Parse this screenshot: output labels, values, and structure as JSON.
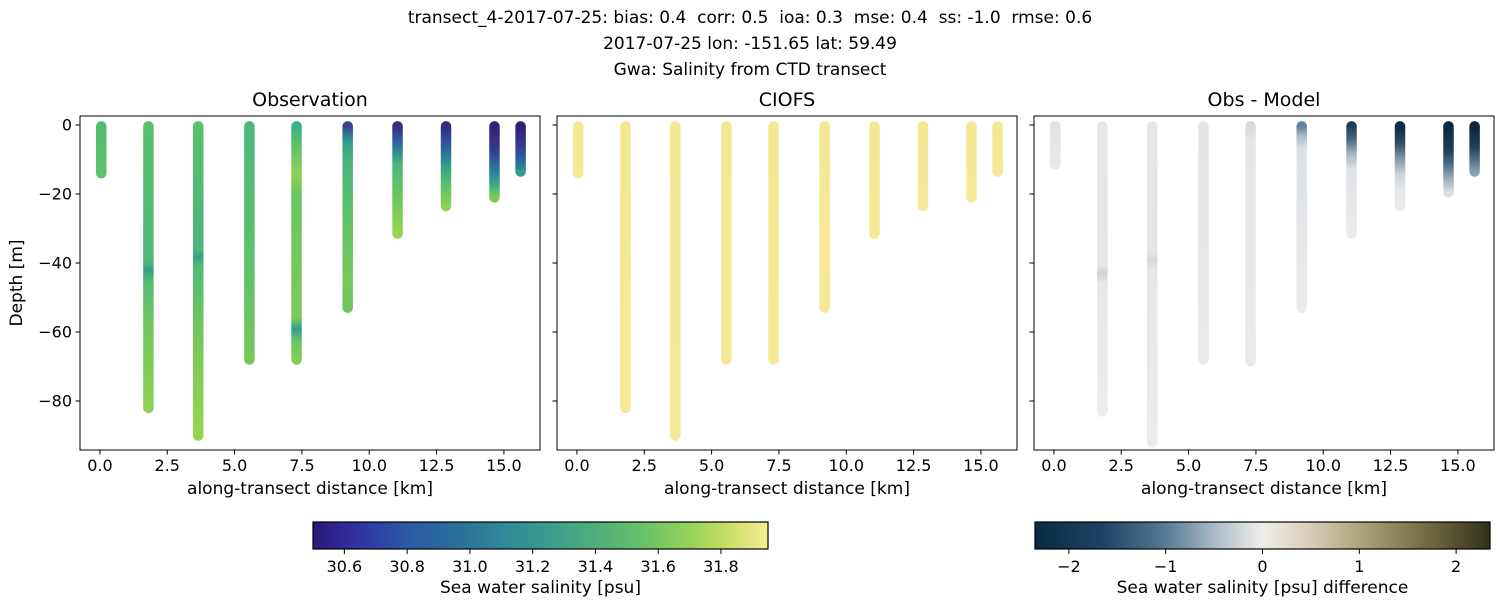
{
  "chart_data": {
    "type": "scatter",
    "suptitle": [
      "transect_4-2017-07-25: bias: 0.4  corr: 0.5  ioa: 0.3  mse: 0.4  ss: -1.0  rmse: 0.6",
      "2017-07-25 lon: -151.65 lat: 59.49",
      "Gwa: Salinity from CTD transect"
    ],
    "xlabel": "along-transect distance [km]",
    "ylabel": "Depth [m]",
    "xlim": [
      -0.74,
      16.34
    ],
    "ylim": [
      -94.2,
      2.6
    ],
    "grid": false,
    "xticks": {
      "values": [
        0.0,
        2.5,
        5.0,
        7.5,
        10.0,
        12.5,
        15.0
      ],
      "labels": [
        "0.0",
        "2.5",
        "5.0",
        "7.5",
        "10.0",
        "12.5",
        "15.0"
      ]
    },
    "yticks": {
      "values": [
        0,
        -20,
        -40,
        -60,
        -80
      ],
      "labels": [
        "0",
        "−20",
        "−40",
        "−60",
        "−80"
      ]
    },
    "panels": [
      {
        "title": "Observation",
        "columns": [
          {
            "x": 0.05,
            "top": -0.4,
            "bottom": -14,
            "stops": [
              [
                0,
                "#53ba74"
              ],
              [
                1,
                "#5fc26a"
              ]
            ]
          },
          {
            "x": 1.8,
            "top": -0.4,
            "bottom": -82,
            "stops": [
              [
                0,
                "#5abf6b"
              ],
              [
                0.48,
                "#51b977"
              ],
              [
                0.51,
                "#2f9f8c"
              ],
              [
                0.54,
                "#51b977"
              ],
              [
                0.72,
                "#74c75c"
              ],
              [
                1,
                "#8ed054"
              ]
            ]
          },
          {
            "x": 3.65,
            "top": -0.4,
            "bottom": -90,
            "stops": [
              [
                0,
                "#5abf6b"
              ],
              [
                0.4,
                "#4cb57b"
              ],
              [
                0.42,
                "#31a28a"
              ],
              [
                0.45,
                "#50b978"
              ],
              [
                0.65,
                "#72c65d"
              ],
              [
                1,
                "#97d451"
              ]
            ]
          },
          {
            "x": 5.55,
            "top": -0.4,
            "bottom": -68,
            "stops": [
              [
                0,
                "#4eb77a"
              ],
              [
                0.55,
                "#5dc06c"
              ],
              [
                1,
                "#76c85b"
              ]
            ]
          },
          {
            "x": 7.3,
            "top": -0.4,
            "bottom": -68,
            "stops": [
              [
                0,
                "#3caf86"
              ],
              [
                0.05,
                "#52ba75"
              ],
              [
                0.2,
                "#8ed054"
              ],
              [
                0.3,
                "#6ac561"
              ],
              [
                0.82,
                "#7cca59"
              ],
              [
                0.87,
                "#30a08c"
              ],
              [
                0.92,
                "#6ac561"
              ],
              [
                1,
                "#85cd56"
              ]
            ]
          },
          {
            "x": 9.2,
            "top": -0.4,
            "bottom": -53,
            "stops": [
              [
                0,
                "#3f3f8f"
              ],
              [
                0.04,
                "#2d7495"
              ],
              [
                0.1,
                "#35a487"
              ],
              [
                0.2,
                "#4db47c"
              ],
              [
                0.5,
                "#5fc168"
              ],
              [
                0.85,
                "#79c95a"
              ],
              [
                1,
                "#70c65f"
              ]
            ]
          },
          {
            "x": 11.05,
            "top": -0.4,
            "bottom": -31.5,
            "stops": [
              [
                0,
                "#382c82"
              ],
              [
                0.13,
                "#2f5ba0"
              ],
              [
                0.25,
                "#2f9390"
              ],
              [
                0.35,
                "#4db47c"
              ],
              [
                0.55,
                "#5fc168"
              ],
              [
                0.85,
                "#85cd56"
              ],
              [
                1,
                "#97d451"
              ]
            ]
          },
          {
            "x": 12.85,
            "top": -0.4,
            "bottom": -23.5,
            "stops": [
              [
                0,
                "#372a80"
              ],
              [
                0.19,
                "#30509b"
              ],
              [
                0.38,
                "#2c7d93"
              ],
              [
                0.55,
                "#3aab83"
              ],
              [
                0.75,
                "#5fc168"
              ],
              [
                1,
                "#90d153"
              ]
            ]
          },
          {
            "x": 14.65,
            "top": -0.4,
            "bottom": -21,
            "stops": [
              [
                0,
                "#342374"
              ],
              [
                0.3,
                "#37358a"
              ],
              [
                0.5,
                "#2e5f9e"
              ],
              [
                0.68,
                "#2e8a92"
              ],
              [
                0.85,
                "#45b180"
              ],
              [
                1,
                "#7fcb58"
              ]
            ]
          },
          {
            "x": 15.62,
            "top": -0.4,
            "bottom": -13.5,
            "stops": [
              [
                0,
                "#32206f"
              ],
              [
                0.4,
                "#343a8c"
              ],
              [
                0.7,
                "#2c5d9d"
              ],
              [
                0.9,
                "#2d8094"
              ],
              [
                1,
                "#2f9f8c"
              ]
            ]
          }
        ]
      },
      {
        "title": "CIOFS",
        "columns": [
          {
            "x": 0.05,
            "top": -0.4,
            "bottom": -14,
            "stops": [
              [
                0,
                "#f4e794"
              ],
              [
                1,
                "#f5e897"
              ]
            ]
          },
          {
            "x": 1.8,
            "top": -0.4,
            "bottom": -82,
            "stops": [
              [
                0,
                "#f4e794"
              ],
              [
                1,
                "#f5e897"
              ]
            ]
          },
          {
            "x": 3.65,
            "top": -0.4,
            "bottom": -90,
            "stops": [
              [
                0,
                "#f4e794"
              ],
              [
                1,
                "#f5e897"
              ]
            ]
          },
          {
            "x": 5.55,
            "top": -0.4,
            "bottom": -68,
            "stops": [
              [
                0,
                "#f4e794"
              ],
              [
                1,
                "#f5e897"
              ]
            ]
          },
          {
            "x": 7.3,
            "top": -0.4,
            "bottom": -68,
            "stops": [
              [
                0,
                "#f4e794"
              ],
              [
                1,
                "#f5e897"
              ]
            ]
          },
          {
            "x": 9.2,
            "top": -0.4,
            "bottom": -53,
            "stops": [
              [
                0,
                "#f4e794"
              ],
              [
                1,
                "#f5e897"
              ]
            ]
          },
          {
            "x": 11.05,
            "top": -0.4,
            "bottom": -31.5,
            "stops": [
              [
                0,
                "#f4e794"
              ],
              [
                1,
                "#f5e897"
              ]
            ]
          },
          {
            "x": 12.85,
            "top": -0.4,
            "bottom": -23.5,
            "stops": [
              [
                0,
                "#f4e794"
              ],
              [
                1,
                "#f5e897"
              ]
            ]
          },
          {
            "x": 14.65,
            "top": -0.4,
            "bottom": -21,
            "stops": [
              [
                0,
                "#f4e794"
              ],
              [
                1,
                "#f5e897"
              ]
            ]
          },
          {
            "x": 15.62,
            "top": -0.4,
            "bottom": -13.5,
            "stops": [
              [
                0,
                "#f4e794"
              ],
              [
                1,
                "#f5e897"
              ]
            ]
          }
        ]
      },
      {
        "title": "Obs - Model",
        "columns": [
          {
            "x": 0.05,
            "top": -0.4,
            "bottom": -11.5,
            "stops": [
              [
                0,
                "#dfe2e5"
              ],
              [
                1,
                "#e8e9ea"
              ]
            ]
          },
          {
            "x": 1.8,
            "top": -0.4,
            "bottom": -83,
            "stops": [
              [
                0,
                "#e6e7e9"
              ],
              [
                0.49,
                "#e4e6e8"
              ],
              [
                0.515,
                "#ccd3da"
              ],
              [
                0.55,
                "#e6e7e9"
              ],
              [
                1,
                "#ececed"
              ]
            ]
          },
          {
            "x": 3.65,
            "top": -0.4,
            "bottom": -92,
            "stops": [
              [
                0,
                "#e4e6e8"
              ],
              [
                0.4,
                "#e2e4e7"
              ],
              [
                0.42,
                "#d2d8dd"
              ],
              [
                0.45,
                "#e4e6e8"
              ],
              [
                1,
                "#ececed"
              ]
            ]
          },
          {
            "x": 5.55,
            "top": -0.4,
            "bottom": -68,
            "stops": [
              [
                0,
                "#e2e4e7"
              ],
              [
                1,
                "#eaeaeb"
              ]
            ]
          },
          {
            "x": 7.3,
            "top": -0.4,
            "bottom": -68.5,
            "stops": [
              [
                0,
                "#d4dade"
              ],
              [
                0.06,
                "#e4e6e8"
              ],
              [
                1,
                "#eaeaeb"
              ]
            ]
          },
          {
            "x": 9.2,
            "top": -0.4,
            "bottom": -53,
            "stops": [
              [
                0,
                "#64819a"
              ],
              [
                0.05,
                "#a9b9c6"
              ],
              [
                0.12,
                "#dde1e5"
              ],
              [
                1,
                "#eaeaeb"
              ]
            ]
          },
          {
            "x": 11.05,
            "top": -0.4,
            "bottom": -31.5,
            "stops": [
              [
                0,
                "#1e3f59"
              ],
              [
                0.12,
                "#47677f"
              ],
              [
                0.25,
                "#a2b4c1"
              ],
              [
                0.4,
                "#dfe2e6"
              ],
              [
                1,
                "#ebebec"
              ]
            ]
          },
          {
            "x": 12.85,
            "top": -0.4,
            "bottom": -23.5,
            "stops": [
              [
                0,
                "#0f2a42"
              ],
              [
                0.2,
                "#2a4b64"
              ],
              [
                0.4,
                "#7d95a7"
              ],
              [
                0.6,
                "#ccd4da"
              ],
              [
                0.8,
                "#e6e8ea"
              ],
              [
                1,
                "#ececed"
              ]
            ]
          },
          {
            "x": 14.65,
            "top": -0.4,
            "bottom": -19.5,
            "stops": [
              [
                0,
                "#0c2740"
              ],
              [
                0.35,
                "#1c3d57"
              ],
              [
                0.6,
                "#53728b"
              ],
              [
                0.8,
                "#9db0bd"
              ],
              [
                1,
                "#dbe0e4"
              ]
            ]
          },
          {
            "x": 15.62,
            "top": -0.4,
            "bottom": -13.5,
            "stops": [
              [
                0,
                "#0c2740"
              ],
              [
                0.45,
                "#1e3f59"
              ],
              [
                0.75,
                "#52718a"
              ],
              [
                1,
                "#8ba1b2"
              ]
            ]
          }
        ]
      }
    ],
    "colorbars": [
      {
        "label": "Sea water salinity [psu]",
        "vmin": 30.5,
        "vmax": 31.95,
        "tick_values": [
          30.6,
          30.8,
          31.0,
          31.2,
          31.4,
          31.6,
          31.8
        ],
        "tick_labels": [
          "30.6",
          "30.8",
          "31.0",
          "31.2",
          "31.4",
          "31.6",
          "31.8"
        ],
        "stops": [
          [
            0,
            "#2b1878"
          ],
          [
            0.07,
            "#322a97"
          ],
          [
            0.14,
            "#2e41a4"
          ],
          [
            0.21,
            "#2b5aa5"
          ],
          [
            0.3,
            "#2a6b9b"
          ],
          [
            0.41,
            "#2f8798"
          ],
          [
            0.52,
            "#3b9c8d"
          ],
          [
            0.62,
            "#4fae7c"
          ],
          [
            0.72,
            "#66c069"
          ],
          [
            0.83,
            "#97d25a"
          ],
          [
            0.91,
            "#c6de66"
          ],
          [
            1,
            "#f8ed93"
          ]
        ]
      },
      {
        "label": "Sea water salinity [psu] difference",
        "vmin": -2.35,
        "vmax": 2.35,
        "tick_values": [
          -2,
          -1,
          0,
          1,
          2
        ],
        "tick_labels": [
          "−2",
          "−1",
          "0",
          "1",
          "2"
        ],
        "stops": [
          [
            0,
            "#092a42"
          ],
          [
            0.15,
            "#1e4463"
          ],
          [
            0.29,
            "#587c96"
          ],
          [
            0.4,
            "#aebdc8"
          ],
          [
            0.5,
            "#f0eeea"
          ],
          [
            0.6,
            "#d8cfba"
          ],
          [
            0.71,
            "#b1a57d"
          ],
          [
            0.85,
            "#776f45"
          ],
          [
            1,
            "#32321a"
          ]
        ]
      }
    ]
  }
}
